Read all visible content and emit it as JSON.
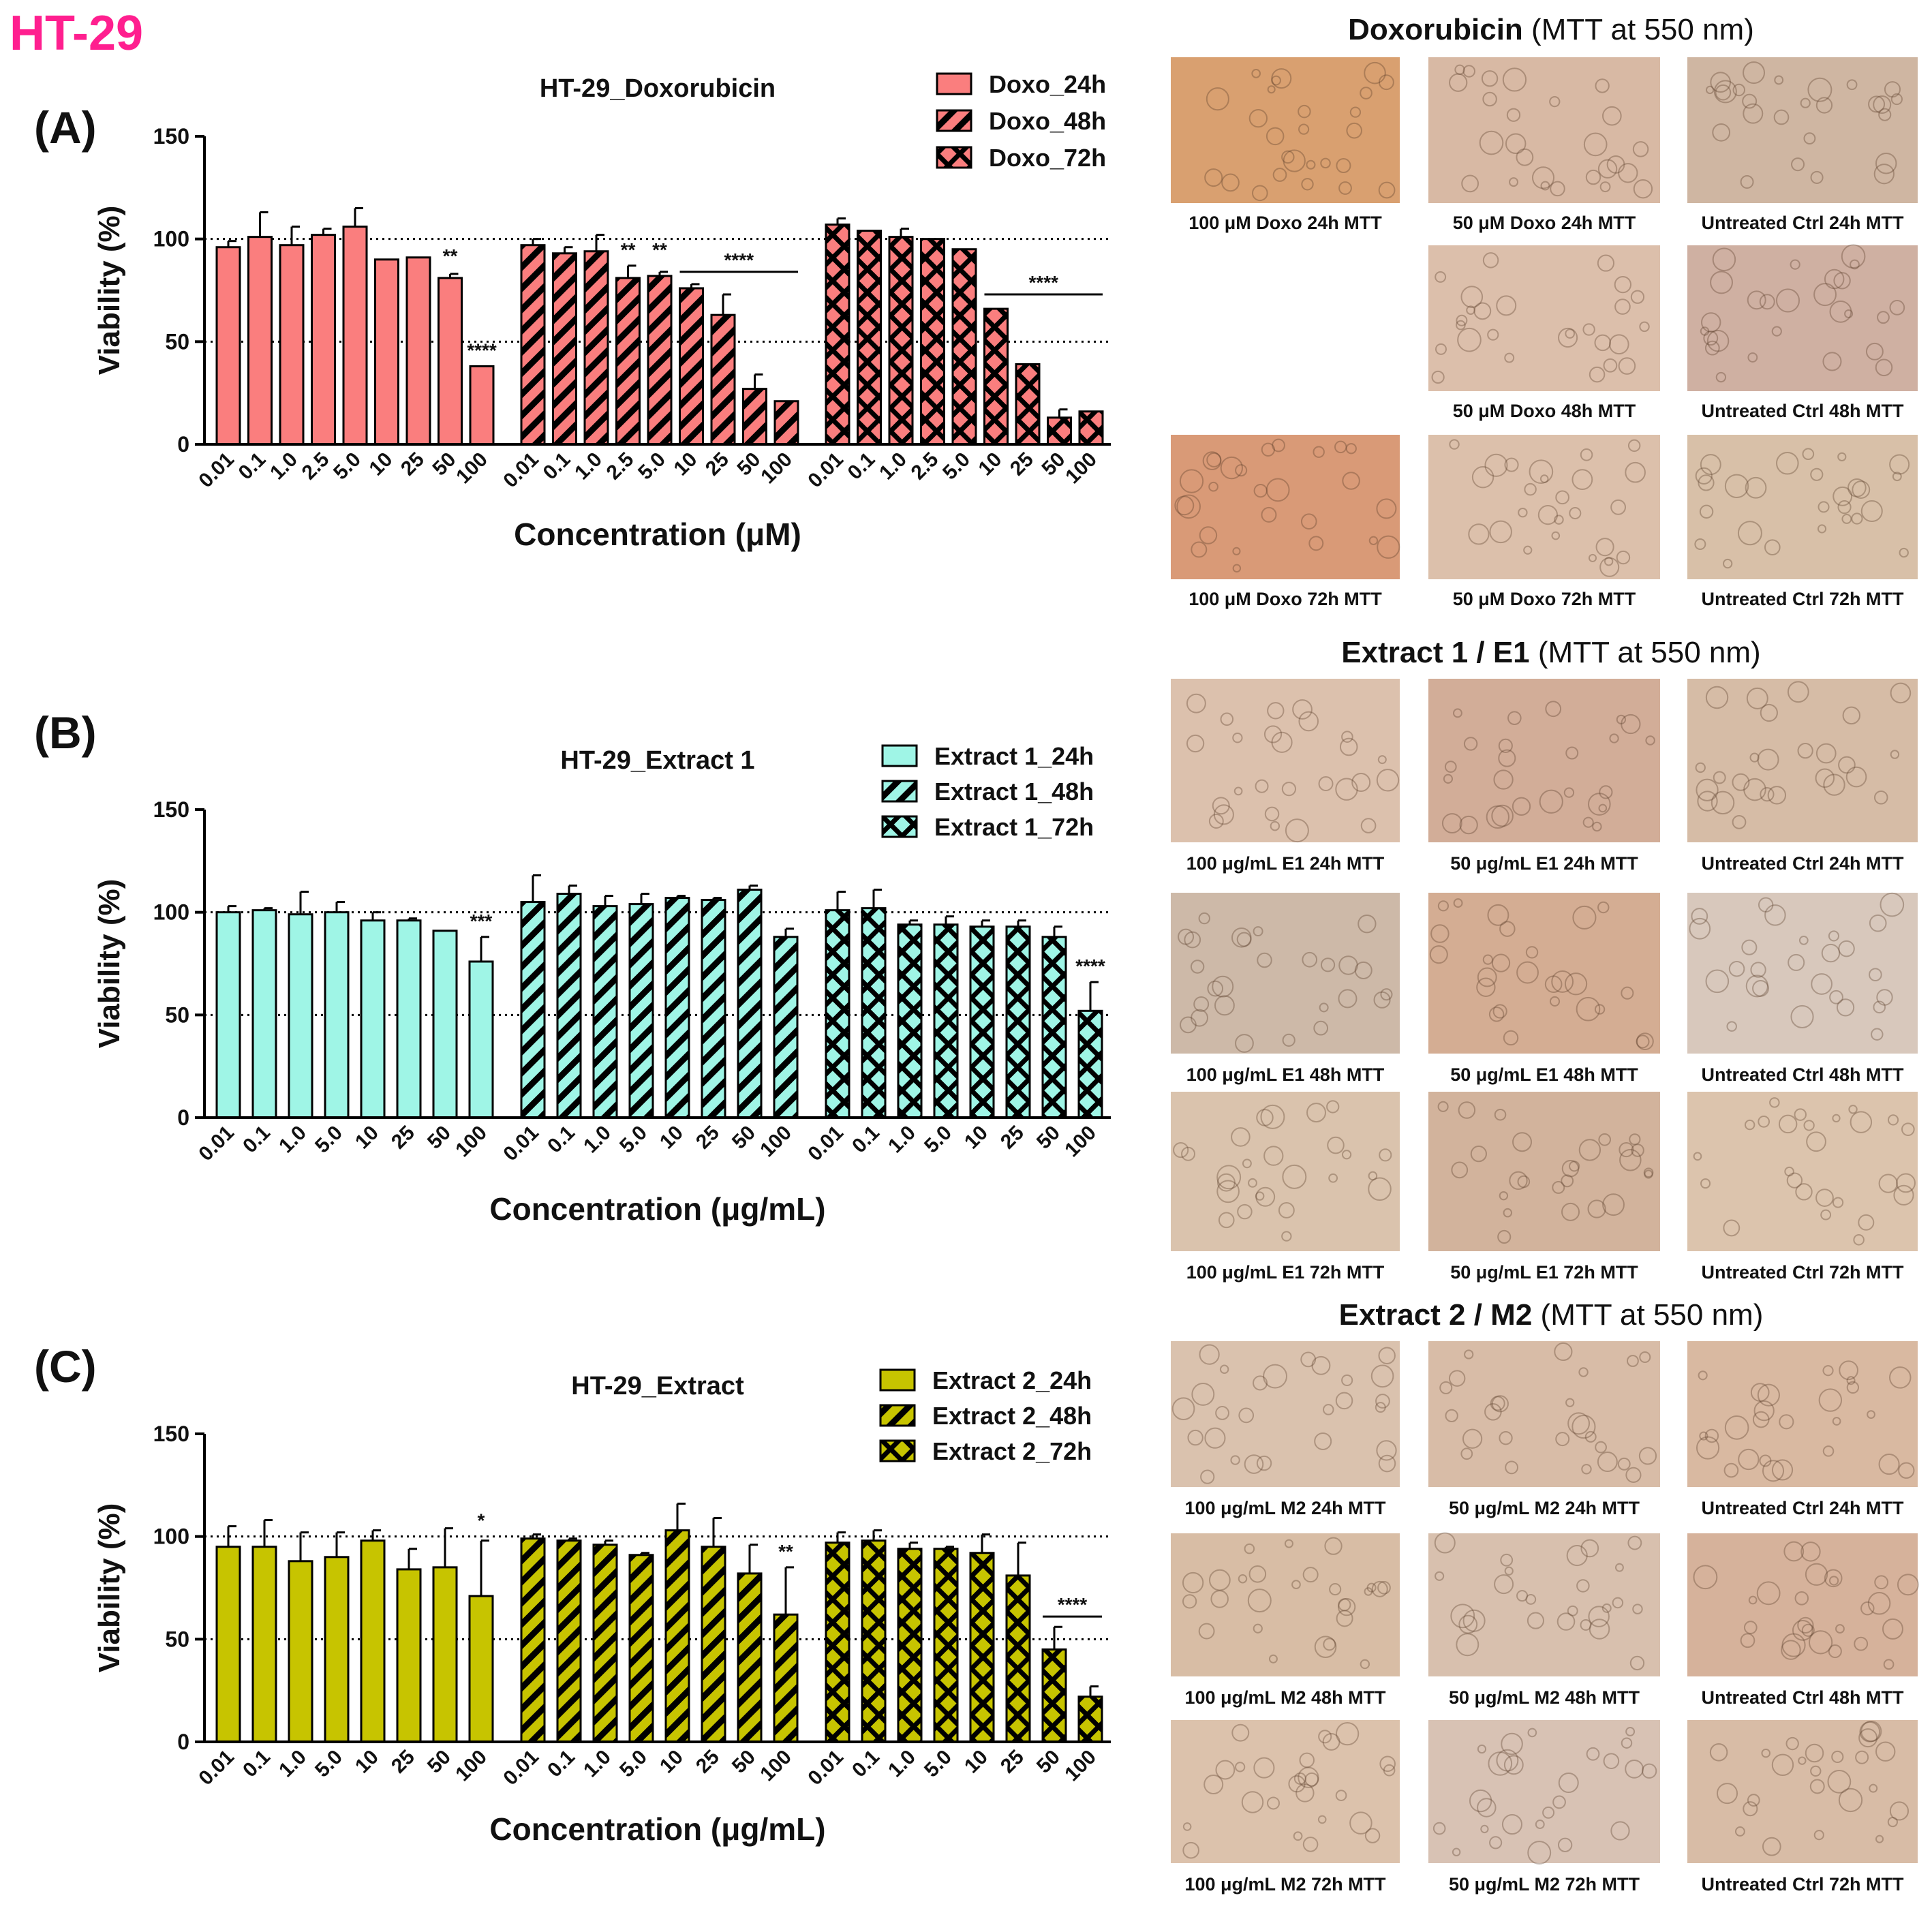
{
  "figure_label": "HT-29",
  "chart_data": [
    {
      "type": "bar",
      "panel": "(A)",
      "title": "HT-29_Doxorubicin",
      "xlabel": "Concentration (μM)",
      "ylabel": "Viability (%)",
      "ylim": [
        0,
        150
      ],
      "yticks": [
        "0",
        "50",
        "100",
        "150"
      ],
      "reference_lines": [
        50,
        100
      ],
      "color": "#fa7e7e",
      "legend_position": "top-right",
      "groups": [
        {
          "name": "Doxo_24h",
          "pattern": "solid",
          "categories": [
            "0.01",
            "0.1",
            "1.0",
            "2.5",
            "5.0",
            "10",
            "25",
            "50",
            "100"
          ],
          "values": [
            96,
            101,
            97,
            102,
            106,
            90,
            91,
            81,
            38
          ],
          "errors": [
            3,
            12,
            9,
            3,
            9,
            0,
            0,
            2,
            0
          ],
          "significance": [
            {
              "text": "**",
              "from": 7,
              "to": 7,
              "y": 86
            },
            {
              "text": "****",
              "from": 8,
              "to": 8,
              "y": 40
            }
          ]
        },
        {
          "name": "Doxo_48h",
          "pattern": "stripe",
          "categories": [
            "0.01",
            "0.1",
            "1.0",
            "2.5",
            "5.0",
            "10",
            "25",
            "50",
            "100"
          ],
          "values": [
            97,
            93,
            94,
            81,
            82,
            76,
            63,
            27,
            21
          ],
          "errors": [
            3,
            3,
            8,
            6,
            2,
            2,
            10,
            7,
            0
          ],
          "significance": [
            {
              "text": "**",
              "from": 3,
              "to": 3,
              "y": 89
            },
            {
              "text": "**",
              "from": 4,
              "to": 4,
              "y": 89
            },
            {
              "text": "****",
              "from": 5,
              "to": 8,
              "y": 84,
              "line": true
            }
          ]
        },
        {
          "name": "Doxo_72h",
          "pattern": "check",
          "categories": [
            "0.01",
            "0.1",
            "1.0",
            "2.5",
            "5.0",
            "10",
            "25",
            "50",
            "100"
          ],
          "values": [
            107,
            104,
            101,
            100,
            95,
            66,
            39,
            13,
            16
          ],
          "errors": [
            3,
            0,
            4,
            0,
            0,
            0,
            0,
            4,
            0
          ],
          "significance": [
            {
              "text": "****",
              "from": 5,
              "to": 8,
              "y": 73,
              "line": true
            }
          ]
        }
      ]
    },
    {
      "type": "bar",
      "panel": "(B)",
      "title": "HT-29_Extract 1",
      "xlabel": "Concentration (μg/mL)",
      "ylabel": "Viability (%)",
      "ylim": [
        0,
        150
      ],
      "yticks": [
        "0",
        "50",
        "100",
        "150"
      ],
      "reference_lines": [
        50,
        100
      ],
      "color": "#9ff5e6",
      "legend_position": "top-right",
      "groups": [
        {
          "name": "Extract 1_24h",
          "pattern": "solid",
          "categories": [
            "0.01",
            "0.1",
            "1.0",
            "5.0",
            "10",
            "25",
            "50",
            "100"
          ],
          "values": [
            100,
            101,
            99,
            100,
            96,
            96,
            91,
            76
          ],
          "errors": [
            3,
            1,
            11,
            5,
            4,
            1,
            0,
            12
          ],
          "significance": [
            {
              "text": "***",
              "from": 7,
              "to": 7,
              "y": 90
            }
          ]
        },
        {
          "name": "Extract 1_48h",
          "pattern": "stripe",
          "categories": [
            "0.01",
            "0.1",
            "1.0",
            "5.0",
            "10",
            "25",
            "50",
            "100"
          ],
          "values": [
            105,
            109,
            103,
            104,
            107,
            106,
            111,
            88
          ],
          "errors": [
            13,
            4,
            5,
            5,
            1,
            1,
            2,
            4
          ],
          "significance": []
        },
        {
          "name": "Extract 1_72h",
          "pattern": "check",
          "categories": [
            "0.01",
            "0.1",
            "1.0",
            "5.0",
            "10",
            "25",
            "50",
            "100"
          ],
          "values": [
            101,
            102,
            94,
            94,
            93,
            93,
            88,
            52
          ],
          "errors": [
            9,
            9,
            2,
            4,
            3,
            3,
            5,
            14
          ],
          "significance": [
            {
              "text": "****",
              "from": 7,
              "to": 7,
              "y": 68
            }
          ]
        }
      ]
    },
    {
      "type": "bar",
      "panel": "(C)",
      "title": "HT-29_Extract",
      "xlabel": "Concentration (μg/mL)",
      "ylabel": "Viability (%)",
      "ylim": [
        0,
        150
      ],
      "yticks": [
        "0",
        "50",
        "100",
        "150"
      ],
      "reference_lines": [
        50,
        100
      ],
      "color": "#c7c400",
      "legend_position": "top-right",
      "groups": [
        {
          "name": "Extract 2_24h",
          "pattern": "solid",
          "categories": [
            "0.01",
            "0.1",
            "1.0",
            "5.0",
            "10",
            "25",
            "50",
            "100"
          ],
          "values": [
            95,
            95,
            88,
            90,
            98,
            84,
            85,
            71
          ],
          "errors": [
            10,
            13,
            14,
            12,
            5,
            10,
            19,
            27
          ],
          "significance": [
            {
              "text": "*",
              "from": 7,
              "to": 7,
              "y": 102
            }
          ]
        },
        {
          "name": "Extract 2_48h",
          "pattern": "stripe",
          "categories": [
            "0.01",
            "0.1",
            "1.0",
            "5.0",
            "10",
            "25",
            "50",
            "100"
          ],
          "values": [
            99,
            98,
            96,
            91,
            103,
            95,
            82,
            62
          ],
          "errors": [
            2,
            1,
            2,
            1,
            13,
            14,
            14,
            23
          ],
          "significance": [
            {
              "text": "**",
              "from": 7,
              "to": 7,
              "y": 87
            }
          ]
        },
        {
          "name": "Extract 2_72h",
          "pattern": "check",
          "categories": [
            "0.01",
            "0.1",
            "1.0",
            "5.0",
            "10",
            "25",
            "50",
            "100"
          ],
          "values": [
            97,
            98,
            94,
            94,
            92,
            81,
            45,
            22
          ],
          "errors": [
            5,
            5,
            3,
            1,
            9,
            16,
            11,
            5
          ],
          "significance": [
            {
              "text": "****",
              "from": 6,
              "to": 7,
              "y": 61,
              "line": true
            }
          ]
        }
      ]
    }
  ],
  "micrographs": [
    {
      "title_bold": "Doxorubicin",
      "title_rest": " (MTT at 550 nm)",
      "tiles": [
        {
          "caption": "100 μM Doxo 24h MTT",
          "tone": "#d9a070"
        },
        {
          "caption": "50 μM Doxo 24h MTT",
          "tone": "#d8b9a4"
        },
        {
          "caption": "Untreated Ctrl 24h MTT",
          "tone": "#cfb6a2"
        },
        {
          "caption": "",
          "tone": ""
        },
        {
          "caption": "50 μM Doxo 48h MTT",
          "tone": "#dcbfab"
        },
        {
          "caption": "Untreated Ctrl 48h MTT",
          "tone": "#cfb0a2"
        },
        {
          "caption": "100 μM Doxo 72h MTT",
          "tone": "#d99a77"
        },
        {
          "caption": "50 μM Doxo 72h MTT",
          "tone": "#dcc0ab"
        },
        {
          "caption": "Untreated Ctrl 72h MTT",
          "tone": "#d8c0a8"
        }
      ]
    },
    {
      "title_bold": "Extract 1 / E1",
      "title_rest": " (MTT at 550 nm)",
      "tiles": [
        {
          "caption": "100 μg/mL E1 24h MTT",
          "tone": "#dcc1ad"
        },
        {
          "caption": "50 μg/mL E1 24h MTT",
          "tone": "#d2ad98"
        },
        {
          "caption": "Untreated Ctrl 24h MTT",
          "tone": "#d6bca6"
        },
        {
          "caption": "100 μg/mL E1 48h MTT",
          "tone": "#cdb9a8"
        },
        {
          "caption": "50 μg/mL E1 48h MTT",
          "tone": "#d4ad93"
        },
        {
          "caption": "Untreated Ctrl 48h MTT",
          "tone": "#d8c8bc"
        },
        {
          "caption": "100 μg/mL E1 72h MTT",
          "tone": "#dac3ad"
        },
        {
          "caption": "50 μg/mL E1 72h MTT",
          "tone": "#d2b39c"
        },
        {
          "caption": "Untreated Ctrl 72h MTT",
          "tone": "#dcc4ad"
        }
      ]
    },
    {
      "title_bold": "Extract 2 / M2",
      "title_rest": " (MTT at 550 nm)",
      "tiles": [
        {
          "caption": "100 μg/mL M2 24h MTT",
          "tone": "#dac2ae"
        },
        {
          "caption": "50 μg/mL M2 24h MTT",
          "tone": "#d8bca7"
        },
        {
          "caption": "Untreated Ctrl 24h MTT",
          "tone": "#d9b9a1"
        },
        {
          "caption": "100 μg/mL M2 48h MTT",
          "tone": "#d8bda5"
        },
        {
          "caption": "50 μg/mL M2 48h MTT",
          "tone": "#d8c0ae"
        },
        {
          "caption": "Untreated Ctrl 48h MTT",
          "tone": "#d6b29b"
        },
        {
          "caption": "100 μg/mL M2 72h MTT",
          "tone": "#dcc2ac"
        },
        {
          "caption": "50 μg/mL M2 72h MTT",
          "tone": "#d8c2b4"
        },
        {
          "caption": "Untreated Ctrl 72h MTT",
          "tone": "#d8bca6"
        }
      ]
    }
  ]
}
